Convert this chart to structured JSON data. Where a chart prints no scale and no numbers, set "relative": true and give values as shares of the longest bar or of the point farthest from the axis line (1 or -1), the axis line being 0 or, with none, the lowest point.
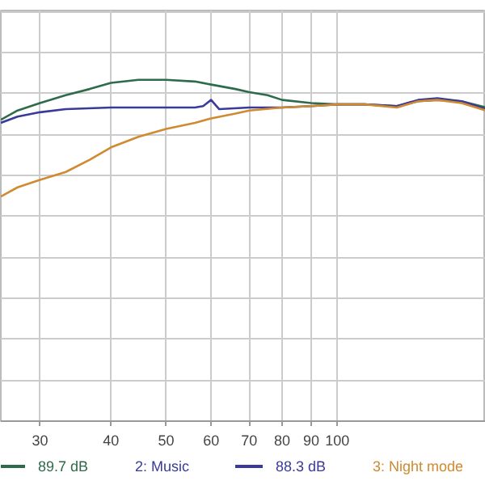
{
  "chart_data": {
    "type": "line",
    "relative": true,
    "log": "x",
    "grid": true,
    "legend": "bottom",
    "xlim": [
      25.6,
      182.5
    ],
    "xticks": [
      30,
      40,
      50,
      60,
      70,
      80,
      90,
      100
    ],
    "annotations": [
      "89.7 dB",
      "88.3 dB"
    ],
    "series": [
      {
        "color": "#2e6b4a",
        "x": [
          25.6,
          27.4,
          30,
          33.3,
          36.7,
          40,
          44.7,
          50,
          56.2,
          60,
          66.2,
          70,
          75.4,
          80,
          90,
          100,
          111.7,
          127.3,
          138.7,
          150,
          165.4,
          182.5
        ],
        "values": [
          0.883,
          0.91,
          0.932,
          0.955,
          0.973,
          0.991,
          1.0,
          1.0,
          0.995,
          0.986,
          0.973,
          0.964,
          0.955,
          0.941,
          0.932,
          0.928,
          0.928,
          0.923,
          0.937,
          0.941,
          0.937,
          0.919
        ]
      },
      {
        "name": "2: Music",
        "color": "#3a3a9a",
        "x": [
          25.6,
          27.4,
          30,
          33.3,
          40,
          44.7,
          50,
          56.2,
          58.1,
          60,
          62.0,
          70,
          80,
          90,
          100,
          111.7,
          127.3,
          138.7,
          150,
          165.4,
          182.5
        ],
        "values": [
          0.874,
          0.892,
          0.905,
          0.914,
          0.919,
          0.919,
          0.919,
          0.919,
          0.923,
          0.941,
          0.914,
          0.919,
          0.919,
          0.923,
          0.928,
          0.928,
          0.923,
          0.941,
          0.946,
          0.937,
          0.914
        ]
      },
      {
        "name": "3: Night mode",
        "color": "#d08a30",
        "x": [
          25.6,
          27.4,
          30,
          33.3,
          36.7,
          40,
          44.7,
          50,
          56.2,
          60,
          66.2,
          70,
          80,
          90,
          100,
          111.7,
          127.3,
          138.7,
          150,
          165.4,
          182.5
        ],
        "values": [
          0.658,
          0.685,
          0.707,
          0.73,
          0.766,
          0.802,
          0.833,
          0.856,
          0.874,
          0.887,
          0.901,
          0.91,
          0.919,
          0.923,
          0.928,
          0.928,
          0.919,
          0.937,
          0.941,
          0.932,
          0.91
        ]
      }
    ]
  }
}
